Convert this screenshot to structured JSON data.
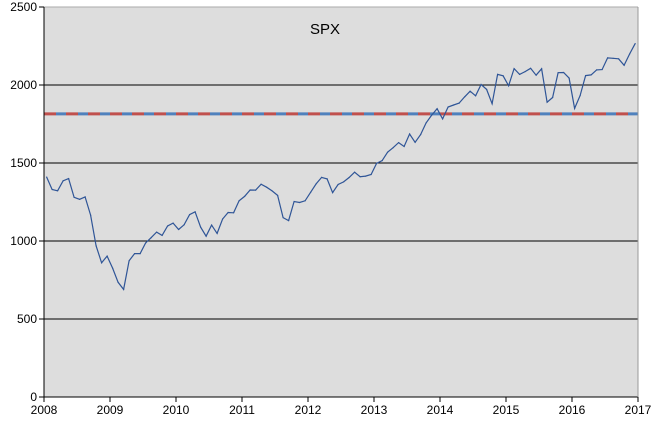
{
  "chart_data": {
    "type": "line",
    "title": "SPX",
    "xlabel": "",
    "ylabel": "",
    "xlim": [
      2008,
      2017
    ],
    "ylim": [
      0,
      2500
    ],
    "x_ticks": [
      "2008",
      "2009",
      "2010",
      "2011",
      "2012",
      "2013",
      "2014",
      "2015",
      "2016",
      "2017"
    ],
    "y_ticks": [
      "0",
      "500",
      "1000",
      "1500",
      "2000",
      "2500"
    ],
    "grid": "horizontal",
    "legend": "none",
    "colors": {
      "series": "#2f5597",
      "plot_bg": "#dddddd",
      "ref_dash_a": "#c0504d",
      "ref_dash_b": "#4f81bd"
    },
    "reference_line": {
      "value": 1815,
      "style": "dashed red/blue"
    },
    "series": [
      {
        "x": [
          "2008-01",
          "2008-02",
          "2008-03",
          "2008-04",
          "2008-05",
          "2008-06",
          "2008-07",
          "2008-08",
          "2008-09",
          "2008-10",
          "2008-11",
          "2008-12",
          "2009-01",
          "2009-02",
          "2009-03",
          "2009-04",
          "2009-05",
          "2009-06",
          "2009-07",
          "2009-08",
          "2009-09",
          "2009-10",
          "2009-11",
          "2009-12",
          "2010-01",
          "2010-02",
          "2010-03",
          "2010-04",
          "2010-05",
          "2010-06",
          "2010-07",
          "2010-08",
          "2010-09",
          "2010-10",
          "2010-11",
          "2010-12",
          "2011-01",
          "2011-02",
          "2011-03",
          "2011-04",
          "2011-05",
          "2011-06",
          "2011-07",
          "2011-08",
          "2011-09",
          "2011-10",
          "2011-11",
          "2011-12",
          "2012-01",
          "2012-02",
          "2012-03",
          "2012-04",
          "2012-05",
          "2012-06",
          "2012-07",
          "2012-08",
          "2012-09",
          "2012-10",
          "2012-11",
          "2012-12",
          "2013-01",
          "2013-02",
          "2013-03",
          "2013-04",
          "2013-05",
          "2013-06",
          "2013-07",
          "2013-08",
          "2013-09",
          "2013-10",
          "2013-11",
          "2013-12",
          "2014-01",
          "2014-02",
          "2014-03",
          "2014-04",
          "2014-05",
          "2014-06",
          "2014-07",
          "2014-08",
          "2014-09",
          "2014-10",
          "2014-11",
          "2014-12",
          "2015-01",
          "2015-02",
          "2015-03",
          "2015-04",
          "2015-05",
          "2015-06",
          "2015-07",
          "2015-08",
          "2015-09",
          "2015-10",
          "2015-11",
          "2015-12",
          "2016-01",
          "2016-02",
          "2016-03",
          "2016-04",
          "2016-05",
          "2016-06",
          "2016-07",
          "2016-08",
          "2016-09",
          "2016-10",
          "2016-11",
          "2016-12"
        ],
        "y": [
          1410,
          1330,
          1322,
          1386,
          1400,
          1280,
          1267,
          1283,
          1166,
          969,
          860,
          903,
          826,
          735,
          690,
          873,
          919,
          919,
          987,
          1021,
          1057,
          1036,
          1096,
          1115,
          1074,
          1104,
          1169,
          1187,
          1089,
          1031,
          1102,
          1049,
          1141,
          1183,
          1181,
          1258,
          1286,
          1327,
          1326,
          1364,
          1345,
          1321,
          1292,
          1150,
          1131,
          1253,
          1247,
          1258,
          1312,
          1366,
          1408,
          1398,
          1310,
          1362,
          1379,
          1407,
          1441,
          1412,
          1416,
          1426,
          1498,
          1515,
          1569,
          1598,
          1631,
          1606,
          1686,
          1633,
          1682,
          1757,
          1806,
          1848,
          1783,
          1859,
          1872,
          1884,
          1924,
          1960,
          1931,
          2003,
          1972,
          1880,
          2068,
          2059,
          1995,
          2105,
          2068,
          2086,
          2107,
          2063,
          2104,
          1890,
          1920,
          2079,
          2080,
          2044,
          1850,
          1932,
          2060,
          2065,
          2097,
          2099,
          2174,
          2171,
          2168,
          2126,
          2199,
          2265
        ]
      }
    ]
  }
}
